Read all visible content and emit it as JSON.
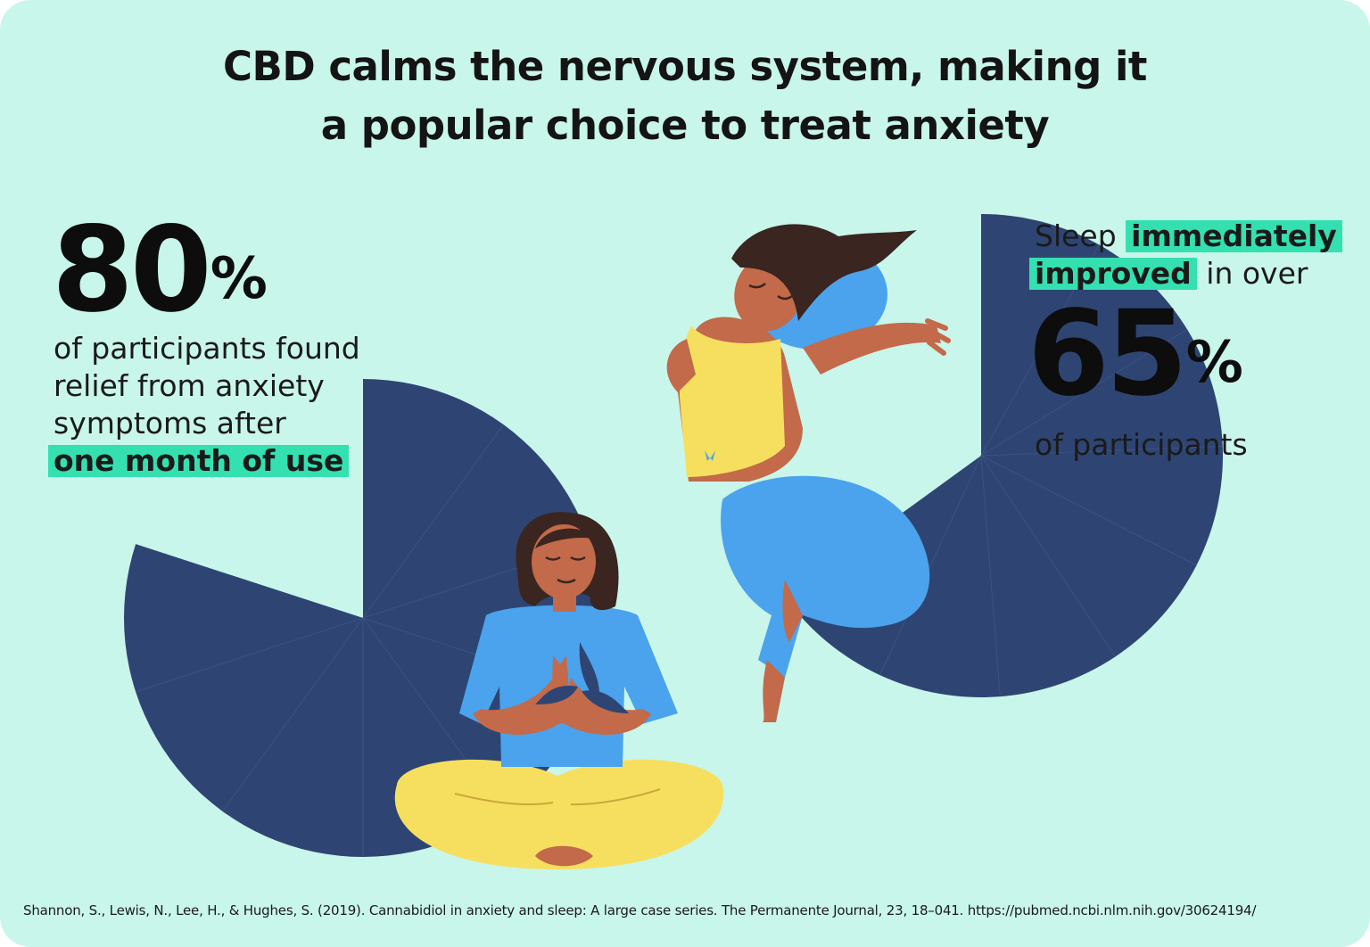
{
  "title": {
    "line1": "CBD calms the nervous system, making it",
    "line2": "a popular choice to treat anxiety"
  },
  "stat_left": {
    "number": "80",
    "unit": "%",
    "line1": "of participants found",
    "line2": "relief from anxiety",
    "line3": "symptoms after",
    "highlight": "one month of use"
  },
  "stat_right": {
    "prefix": "Sleep",
    "highlight1": "immediately",
    "highlight2": "improved",
    "suffix": "in over",
    "number": "65",
    "unit": "%",
    "tail": "of participants"
  },
  "citation": "Shannon, S., Lewis, N., Lee, H., & Hughes, S. (2019). Cannabidiol in anxiety and sleep: A large case series. The Permanente Journal, 23, 18–041. https://pubmed.ncbi.nlm.nih.gov/30624194/",
  "colors": {
    "background": "#c9f6ea",
    "pie": "#2e4573",
    "highlight": "#34e0b0",
    "shirt_blue": "#4aa3ec",
    "yellow": "#f6df5f",
    "skin": "#c26a4a",
    "hair": "#3a2520"
  },
  "chart_data": [
    {
      "type": "pie",
      "label": "80%",
      "slices": [
        {
          "value": 80,
          "shown": true
        },
        {
          "value": 20,
          "shown": false
        }
      ]
    },
    {
      "type": "pie",
      "label": "65%",
      "slices": [
        {
          "value": 65,
          "shown": true
        },
        {
          "value": 35,
          "shown": false
        }
      ]
    }
  ]
}
